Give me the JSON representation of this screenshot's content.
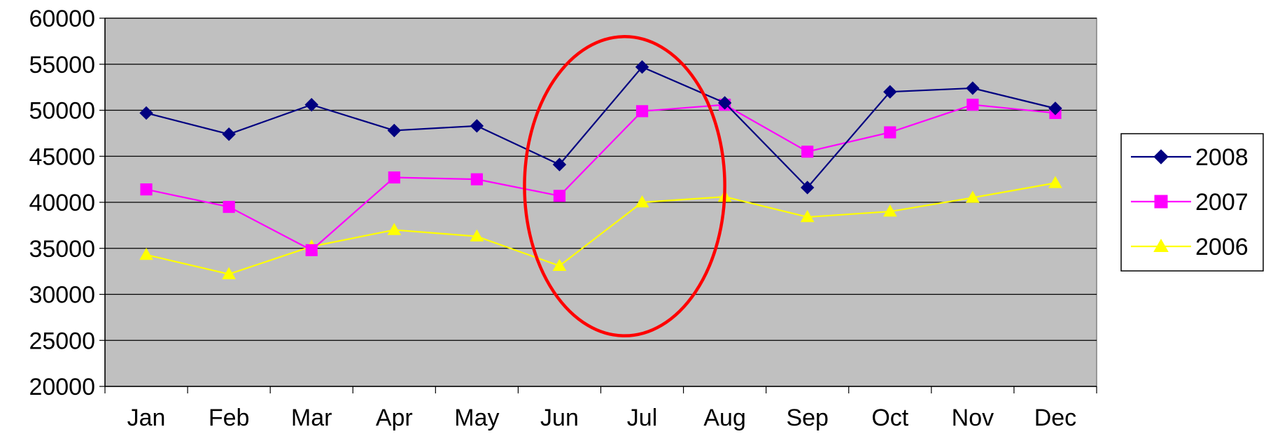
{
  "chart_data": {
    "type": "line",
    "title": "",
    "xlabel": "",
    "ylabel": "",
    "categories": [
      "Jan",
      "Feb",
      "Mar",
      "Apr",
      "May",
      "Jun",
      "Jul",
      "Aug",
      "Sep",
      "Oct",
      "Nov",
      "Dec"
    ],
    "ylim": [
      20000,
      60000
    ],
    "yticks": [
      20000,
      25000,
      30000,
      35000,
      40000,
      45000,
      50000,
      55000,
      60000
    ],
    "grid": true,
    "plot_background": "#c0c0c0",
    "legend_position": "right",
    "series": [
      {
        "name": "2008",
        "color": "#000080",
        "marker": "diamond",
        "values": [
          49700,
          47400,
          50600,
          47800,
          48300,
          44100,
          54700,
          50800,
          41600,
          52000,
          52400,
          50200
        ]
      },
      {
        "name": "2007",
        "color": "#ff00ff",
        "marker": "square",
        "values": [
          41400,
          39500,
          34800,
          42700,
          42500,
          40700,
          49900,
          50600,
          45500,
          47600,
          50600,
          49700
        ]
      },
      {
        "name": "2006",
        "color": "#ffff00",
        "marker": "triangle",
        "values": [
          34300,
          32200,
          35200,
          37000,
          36300,
          33100,
          40000,
          40600,
          38400,
          39000,
          40500,
          42100
        ]
      }
    ],
    "annotations": [
      {
        "type": "ellipse",
        "color": "#ff0000",
        "around_categories": [
          "Jun",
          "Jul",
          "Aug"
        ],
        "y_range": [
          25500,
          58000
        ]
      }
    ]
  }
}
